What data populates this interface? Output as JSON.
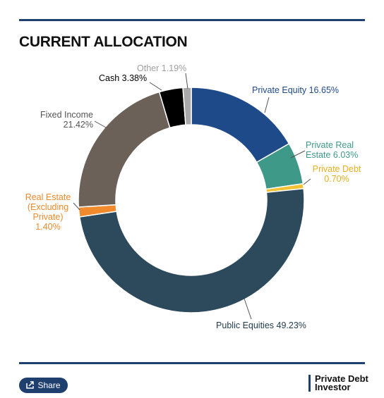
{
  "chart_data": {
    "type": "donut",
    "title": "CURRENT ALLOCATION",
    "categories": [
      "Private Equity",
      "Private Real Estate",
      "Private Debt",
      "Public Equities",
      "Real Estate (Excluding Private)",
      "Fixed Income",
      "Cash",
      "Other"
    ],
    "values": [
      16.65,
      6.03,
      0.7,
      49.23,
      1.4,
      21.42,
      3.38,
      1.19
    ],
    "value_labels": [
      "16.65%",
      "6.03%",
      "0.70%",
      "49.23%",
      "1.40%",
      "21.42%",
      "3.38%",
      "1.19%"
    ],
    "colors": [
      "#1f4a8a",
      "#3f9988",
      "#f2c234",
      "#2c4a5b",
      "#f08a2c",
      "#6c6158",
      "#000000",
      "#a9a9a9"
    ]
  },
  "share_button": "Share",
  "brand": [
    "Private Debt",
    "Investor"
  ]
}
